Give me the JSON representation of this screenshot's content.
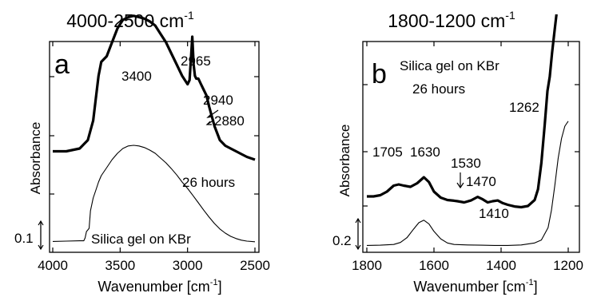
{
  "chart_data": [
    {
      "type": "line",
      "panel_label": "a",
      "title": "4000-2500 cm",
      "title_sup": "-1",
      "xlabel": "Wavenumber [cm",
      "xlabel_sup": "-1",
      "xlabel_end": "]",
      "ylabel": "Absorbance",
      "xlim": [
        4000,
        2500
      ],
      "x_reversed": true,
      "xticks": [
        "4000",
        "3500",
        "3000",
        "2500"
      ],
      "xtick_values": [
        4000,
        3500,
        3000,
        2500
      ],
      "grid": false,
      "scale_bar_label": "0.1",
      "scale_bar_value": 0.1,
      "series": [
        {
          "name": "26 hours",
          "style": "thick",
          "x": [
            4000,
            3900,
            3800,
            3740,
            3700,
            3660,
            3640,
            3600,
            3560,
            3520,
            3480,
            3440,
            3400,
            3360,
            3320,
            3280,
            3240,
            3200,
            3160,
            3120,
            3080,
            3040,
            3000,
            2985,
            2975,
            2965,
            2955,
            2945,
            2935,
            2920,
            2900,
            2880,
            2860,
            2840,
            2800,
            2760,
            2720,
            2680,
            2640,
            2600,
            2560,
            2500
          ],
          "y": [
            0.29,
            0.29,
            0.3,
            0.33,
            0.4,
            0.56,
            0.61,
            0.63,
            0.68,
            0.73,
            0.76,
            0.77,
            0.775,
            0.77,
            0.765,
            0.755,
            0.74,
            0.71,
            0.68,
            0.64,
            0.6,
            0.56,
            0.53,
            0.545,
            0.62,
            0.7,
            0.6,
            0.56,
            0.55,
            0.55,
            0.53,
            0.51,
            0.49,
            0.45,
            0.38,
            0.33,
            0.31,
            0.3,
            0.29,
            0.28,
            0.27,
            0.26
          ]
        },
        {
          "name": "Silica gel on KBr",
          "style": "thin",
          "x": [
            4000,
            3900,
            3800,
            3770,
            3760,
            3750,
            3740,
            3730,
            3720,
            3700,
            3680,
            3660,
            3640,
            3600,
            3560,
            3520,
            3480,
            3440,
            3400,
            3360,
            3320,
            3280,
            3240,
            3200,
            3160,
            3120,
            3080,
            3040,
            3000,
            2960,
            2920,
            2880,
            2840,
            2800,
            2760,
            2720,
            2680,
            2640,
            2600,
            2560,
            2500
          ],
          "y": [
            0.004,
            0.005,
            0.006,
            0.006,
            0.015,
            0.035,
            0.04,
            0.045,
            0.1,
            0.14,
            0.165,
            0.19,
            0.21,
            0.235,
            0.26,
            0.28,
            0.295,
            0.303,
            0.305,
            0.303,
            0.298,
            0.29,
            0.28,
            0.265,
            0.25,
            0.232,
            0.212,
            0.19,
            0.17,
            0.148,
            0.125,
            0.102,
            0.08,
            0.06,
            0.043,
            0.03,
            0.02,
            0.013,
            0.008,
            0.005,
            0.003
          ]
        }
      ],
      "annotations": [
        "3400",
        "2965",
        "2940",
        "2880",
        "26 hours",
        "Silica gel on KBr"
      ]
    },
    {
      "type": "line",
      "panel_label": "b",
      "title": "1800-1200 cm",
      "title_sup": "-1",
      "xlabel": "Wavenumber [cm",
      "xlabel_sup": "-1",
      "xlabel_end": "]",
      "ylabel": "Absorbance",
      "xlim": [
        1800,
        1200
      ],
      "x_reversed": true,
      "xticks": [
        "1800",
        "1600",
        "1400",
        "1200"
      ],
      "xtick_values": [
        1800,
        1600,
        1400,
        1200
      ],
      "grid": false,
      "scale_bar_label": "0.2",
      "scale_bar_value": 0.2,
      "series": [
        {
          "name": "Silica gel on KBr 26 hours",
          "style": "thick",
          "x": [
            1800,
            1780,
            1760,
            1740,
            1720,
            1705,
            1690,
            1670,
            1650,
            1630,
            1615,
            1600,
            1580,
            1560,
            1540,
            1530,
            1510,
            1490,
            1470,
            1455,
            1440,
            1425,
            1410,
            1395,
            1380,
            1360,
            1340,
            1320,
            1300,
            1290,
            1280,
            1270,
            1262,
            1255,
            1248,
            1240,
            1235
          ],
          "y": [
            0.18,
            0.18,
            0.185,
            0.2,
            0.225,
            0.23,
            0.225,
            0.22,
            0.235,
            0.26,
            0.24,
            0.2,
            0.175,
            0.165,
            0.162,
            0.16,
            0.155,
            0.163,
            0.178,
            0.168,
            0.155,
            0.16,
            0.163,
            0.152,
            0.145,
            0.138,
            0.135,
            0.14,
            0.165,
            0.21,
            0.32,
            0.48,
            0.62,
            0.68,
            0.78,
            0.88,
            0.94
          ]
        },
        {
          "name": "Silica gel on KBr",
          "style": "thin",
          "x": [
            1800,
            1760,
            1720,
            1700,
            1680,
            1660,
            1645,
            1630,
            1615,
            1600,
            1580,
            1560,
            1540,
            1500,
            1460,
            1420,
            1380,
            1340,
            1300,
            1280,
            1260,
            1250,
            1240,
            1230,
            1220,
            1210,
            1200
          ],
          "y": [
            0.018,
            0.019,
            0.022,
            0.03,
            0.05,
            0.085,
            0.11,
            0.12,
            0.105,
            0.075,
            0.045,
            0.028,
            0.022,
            0.02,
            0.019,
            0.018,
            0.018,
            0.02,
            0.028,
            0.04,
            0.09,
            0.16,
            0.26,
            0.37,
            0.45,
            0.5,
            0.52
          ]
        }
      ],
      "annotations": [
        "Silica gel on KBr",
        "26 hours",
        "1262",
        "1705",
        "1630",
        "1530",
        "1470",
        "1410"
      ]
    }
  ]
}
